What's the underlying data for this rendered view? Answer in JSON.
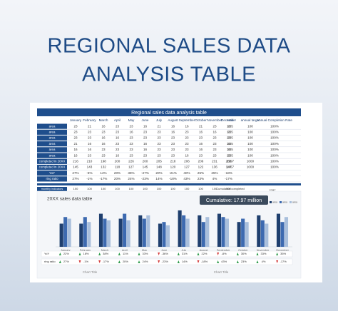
{
  "header": {
    "title_line1": "REGIONAL SALES DATA",
    "title_line2": "ANALYSIS TABLE"
  },
  "table": {
    "title": "Regional sales data analysis table",
    "columns": [
      "January",
      "February",
      "March",
      "April",
      "May",
      "June",
      "July",
      "August",
      "September",
      "October",
      "November",
      "December",
      "total",
      "annual target",
      "Annual Completion Rate"
    ],
    "rows": [
      [
        "area",
        23,
        21,
        16,
        23,
        23,
        16,
        21,
        16,
        16,
        21,
        23,
        16,
        235,
        100,
        "100%"
      ],
      [
        "area",
        23,
        23,
        23,
        23,
        16,
        23,
        23,
        16,
        23,
        16,
        16,
        16,
        235,
        100,
        "100%"
      ],
      [
        "area",
        23,
        23,
        16,
        16,
        23,
        23,
        23,
        23,
        23,
        23,
        23,
        23,
        235,
        100,
        "100%"
      ],
      [
        "area",
        21,
        16,
        16,
        23,
        23,
        16,
        23,
        23,
        23,
        16,
        23,
        16,
        235,
        100,
        "100%"
      ],
      [
        "area",
        16,
        16,
        23,
        23,
        23,
        16,
        23,
        23,
        23,
        16,
        23,
        16,
        235,
        100,
        "100%"
      ],
      [
        "area",
        16,
        23,
        23,
        16,
        23,
        23,
        23,
        23,
        16,
        23,
        23,
        23,
        235,
        100,
        "100%"
      ],
      [
        "completed in 20XX",
        216,
        210,
        198,
        200,
        226,
        200,
        205,
        218,
        206,
        206,
        231,
        200,
        1997,
        1000,
        "100%"
      ],
      [
        "completed in 20XX",
        145,
        143,
        132,
        118,
        127,
        145,
        148,
        120,
        127,
        122,
        136,
        147,
        1467,
        1000,
        "100%"
      ],
      [
        "YoY",
        "27%",
        "-5%",
        "14%",
        "20%",
        "36%",
        "-27%",
        "20%",
        "-21%",
        "40%",
        "25%",
        "25%",
        "-18%"
      ],
      [
        "ring ratio",
        "27%",
        "-1%",
        "-17%",
        "20%",
        "24%",
        "-23%",
        "14%",
        "-18%",
        "43%",
        "23%",
        "4%",
        "-17%"
      ]
    ]
  },
  "indicators": {
    "rows": [
      [
        "monthly indicators",
        100,
        100,
        100,
        100,
        100,
        100,
        100,
        100,
        100,
        100,
        100,
        100,
        "Cumulative completed",
        2787
      ],
      [
        "monthly completion rate",
        "100%",
        "100%",
        "100%",
        "100%",
        "100%",
        "100%",
        "100%",
        "100%",
        "100%",
        "100%",
        "100%",
        "100%"
      ]
    ]
  },
  "chart": {
    "type": "bar",
    "title": "20XX sales data table",
    "callout": "Cumulative: 17.97 million",
    "categories": [
      "January",
      "February",
      "March",
      "April",
      "May",
      "June",
      "July",
      "August",
      "September",
      "October",
      "November",
      "December"
    ],
    "series": [
      {
        "name": "area",
        "color": "#1f3f6e",
        "values": [
          28,
          28,
          40,
          34,
          38,
          28,
          44,
          38,
          40,
          30,
          38,
          40
        ]
      },
      {
        "name": "area",
        "color": "#3d6ab0",
        "values": [
          36,
          36,
          34,
          40,
          34,
          30,
          38,
          30,
          36,
          34,
          32,
          30
        ]
      },
      {
        "name": "area",
        "color": "#a9bfdc",
        "values": [
          34,
          30,
          32,
          32,
          38,
          26,
          34,
          36,
          34,
          30,
          28,
          36
        ]
      }
    ],
    "ylim": [
      0,
      50
    ],
    "yoy_label": "YoY",
    "yoy": [
      "22%",
      "18%",
      "38%",
      "11%",
      "33%",
      "-36%",
      "31%",
      "22%",
      "-8%",
      "30%",
      "33%",
      "35%"
    ],
    "ring_label": "ring ratio",
    "ring": [
      "27%",
      "-1%",
      "-17%",
      "20%",
      "24%",
      "-23%",
      "14%",
      "-18%",
      "43%",
      "23%",
      "4%",
      "-17%"
    ],
    "footer_titles": [
      "Chart Title",
      "Chart Title"
    ]
  }
}
